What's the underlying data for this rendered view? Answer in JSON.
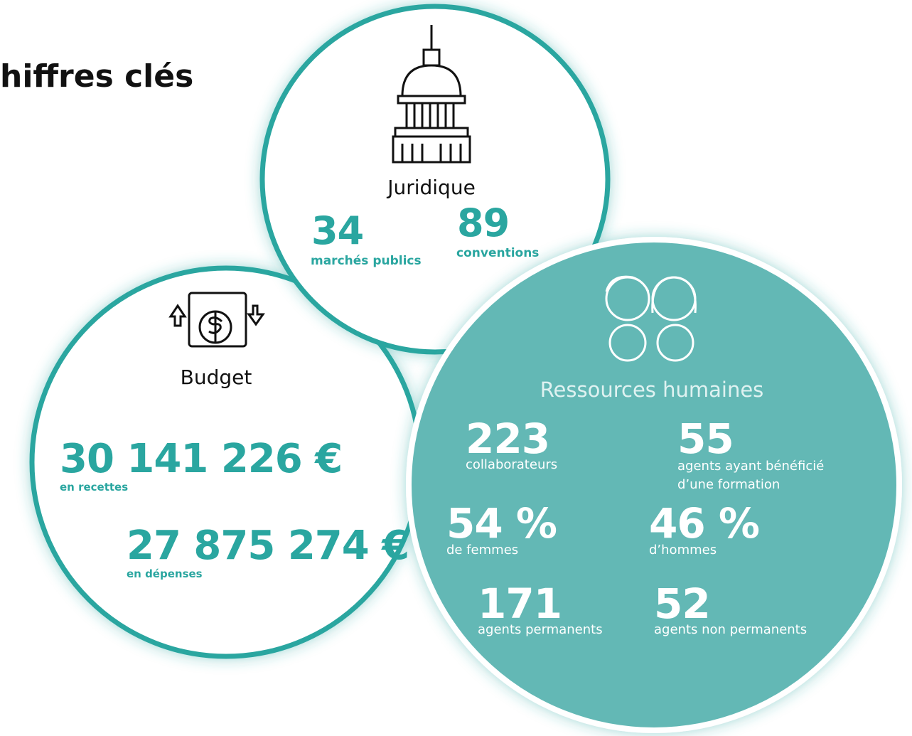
{
  "title": "hiffres clés",
  "juridique": {
    "title": "Juridique",
    "stats": [
      {
        "value": "34",
        "label": "marchés publics"
      },
      {
        "value": "89",
        "label": "conventions"
      }
    ]
  },
  "budget": {
    "title": "Budget",
    "stats": [
      {
        "value": "30 141 226 €",
        "label": "en recettes"
      },
      {
        "value": "27 875 274 €",
        "label": "en dépenses"
      }
    ]
  },
  "rh": {
    "title": "Ressources humaines",
    "stats": [
      {
        "value": "223",
        "label": "collaborateurs"
      },
      {
        "value": "55",
        "label": "agents ayant bénéficié d’une formation"
      },
      {
        "value": "54 %",
        "label": "de femmes"
      },
      {
        "value": "46 %",
        "label": "d’hommes"
      },
      {
        "value": "171",
        "label": "agents permanents"
      },
      {
        "value": "52",
        "label": "agents non permanents"
      }
    ]
  }
}
